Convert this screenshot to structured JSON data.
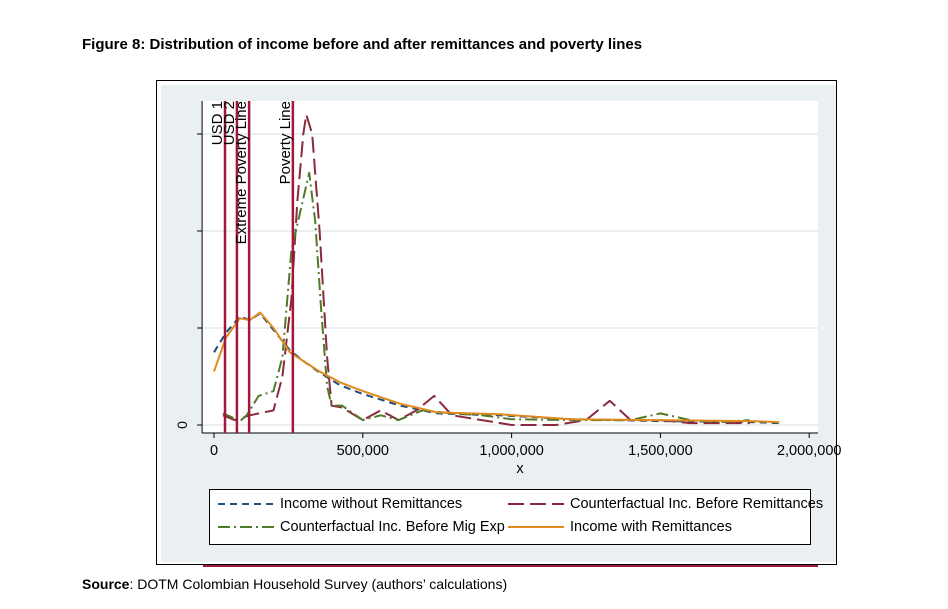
{
  "title": "Figure 8: Distribution of income before and after remittances and poverty lines",
  "source": {
    "label": "Source",
    "text": ": DOTM Colombian Household Survey (authors’ calculations)"
  },
  "chart_data": {
    "type": "line",
    "xlabel": "x",
    "ylabel": "",
    "xlim": [
      -40000,
      2030000
    ],
    "ylim": [
      -0.08,
      3.35
    ],
    "xticks": [
      0,
      500000,
      1000000,
      1500000,
      2000000
    ],
    "xtick_labels": [
      "0",
      "500,000",
      "1,000,000",
      "1,500,000",
      "2,000,000"
    ],
    "yticks": [
      0,
      1,
      2,
      3
    ],
    "ytick_labels": [
      "0",
      "",
      "",
      ""
    ],
    "grid": true,
    "legend": "bottom",
    "vlines": [
      {
        "label": "USD 1",
        "x": 37000
      },
      {
        "label": "USD 2",
        "x": 77000
      },
      {
        "label": "Extreme Poverty Line",
        "x": 118000
      },
      {
        "label": "Poverty Line",
        "x": 265000
      }
    ],
    "vline_color": "#a3173a",
    "series": [
      {
        "name": "Income without Remittances",
        "color": "#1f4e79",
        "dash": "7,5",
        "x": [
          0,
          40000,
          87000,
          120000,
          155000,
          200000,
          255000,
          300000,
          350000,
          423000,
          500000,
          625000,
          750000,
          960000,
          1200000,
          1500000,
          1800000,
          1900000
        ],
        "y": [
          0.75,
          0.95,
          1.12,
          1.08,
          1.15,
          0.98,
          0.77,
          0.66,
          0.55,
          0.41,
          0.32,
          0.2,
          0.12,
          0.1,
          0.06,
          0.04,
          0.03,
          0.02
        ]
      },
      {
        "name": "Counterfactual Inc. Before Remittances",
        "color": "#8b2a3c",
        "dash": "16,6",
        "x": [
          30000,
          70000,
          120000,
          200000,
          230000,
          260000,
          280000,
          300000,
          310000,
          330000,
          355000,
          380000,
          395000,
          430000,
          500000,
          560000,
          620000,
          680000,
          740000,
          800000,
          900000,
          1000000,
          1150000,
          1250000,
          1330000,
          1400000,
          1500000,
          1600000,
          1800000
        ],
        "y": [
          0.1,
          0.05,
          0.1,
          0.15,
          0.5,
          1.3,
          2.3,
          3.0,
          3.2,
          3.0,
          2.0,
          0.7,
          0.2,
          0.18,
          0.05,
          0.15,
          0.05,
          0.15,
          0.3,
          0.1,
          0.05,
          0,
          0,
          0.05,
          0.25,
          0.05,
          0.05,
          0.02,
          0.02
        ]
      },
      {
        "name": "Counterfactual Inc. Before Mig Exp",
        "color": "#4f7a28",
        "dash": "12,4,2,4",
        "x": [
          30000,
          60000,
          80000,
          110000,
          150000,
          200000,
          230000,
          260000,
          290000,
          320000,
          340000,
          360000,
          380000,
          395000,
          430000,
          500000,
          560000,
          620000,
          700000,
          800000,
          900000,
          1000000,
          1200000,
          1400000,
          1500000,
          1600000,
          1700000,
          1800000
        ],
        "y": [
          0.12,
          0.08,
          0.02,
          0.1,
          0.3,
          0.35,
          0.7,
          1.8,
          2.2,
          2.6,
          2.1,
          1.2,
          0.4,
          0.2,
          0.2,
          0.05,
          0.1,
          0.05,
          0.15,
          0.12,
          0.1,
          0.06,
          0.05,
          0.05,
          0.12,
          0.05,
          0.03,
          0.05
        ]
      },
      {
        "name": "Income with Remittances",
        "color": "#e08a1e",
        "dash": "",
        "x": [
          0,
          40000,
          87000,
          120000,
          155000,
          200000,
          255000,
          300000,
          350000,
          423000,
          500000,
          625000,
          750000,
          960000,
          1200000,
          1500000,
          1800000,
          1900000
        ],
        "y": [
          0.55,
          0.9,
          1.1,
          1.08,
          1.16,
          1.0,
          0.75,
          0.66,
          0.56,
          0.44,
          0.35,
          0.22,
          0.13,
          0.11,
          0.06,
          0.05,
          0.04,
          0.03
        ]
      }
    ]
  }
}
